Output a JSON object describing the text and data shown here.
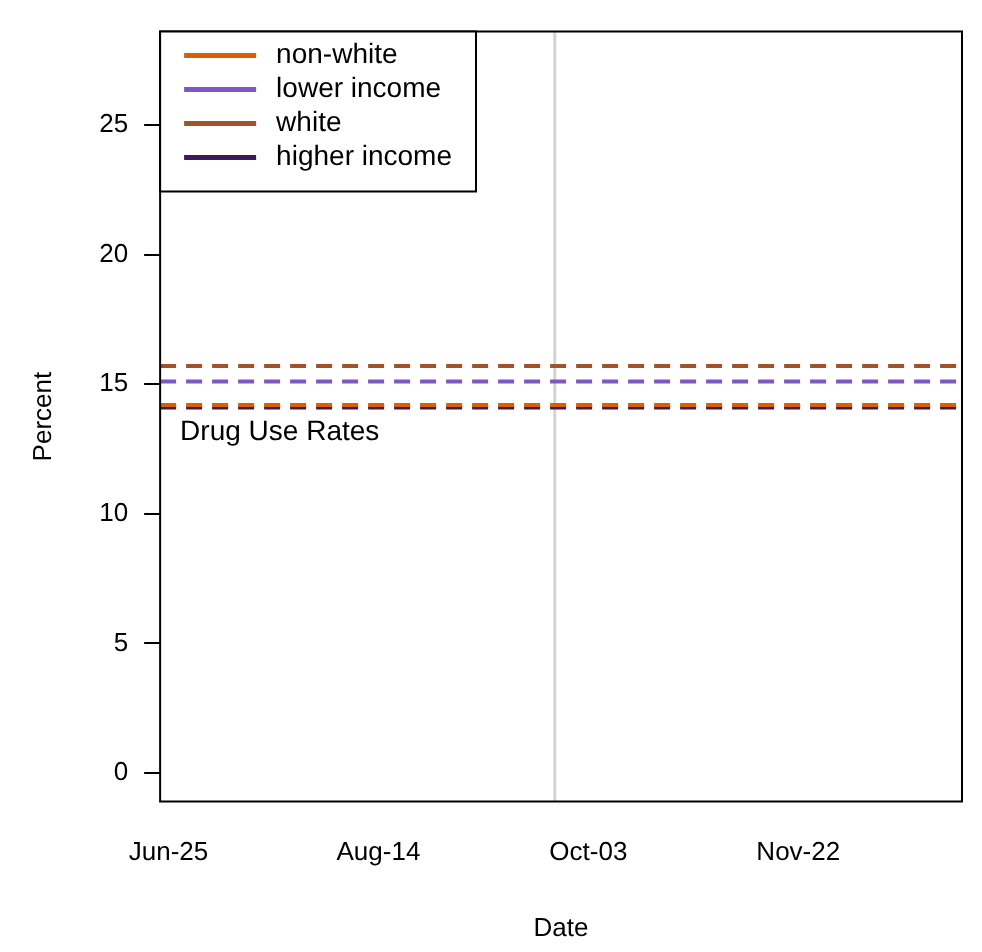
{
  "chart_data": {
    "type": "line",
    "xlabel": "Date",
    "ylabel": "Percent",
    "xlim": [
      "--06-23",
      "--12-31"
    ],
    "xticks": [
      {
        "value": "--06-25",
        "label": "Jun-25"
      },
      {
        "value": "--08-14",
        "label": "Aug-14"
      },
      {
        "value": "--10-03",
        "label": "Oct-03"
      },
      {
        "value": "--11-22",
        "label": "Nov-22"
      }
    ],
    "ylim": [
      -1.1,
      28.6
    ],
    "yticks": [
      0,
      5,
      10,
      15,
      20,
      25
    ],
    "series": [
      {
        "name": "non-white",
        "color": "#d95f02",
        "x": [
          "--06-23",
          "--12-31"
        ],
        "values": [
          14.2,
          14.2
        ]
      },
      {
        "name": "lower income",
        "color": "#7e57c2",
        "x": [
          "--06-23",
          "--12-31"
        ],
        "values": [
          15.1,
          15.1
        ]
      },
      {
        "name": "white",
        "color": "#a0522d",
        "x": [
          "--06-23",
          "--12-31"
        ],
        "values": [
          15.7,
          15.7
        ]
      },
      {
        "name": "higher income",
        "color": "#3b1a5e",
        "x": [
          "--06-23",
          "--12-31"
        ],
        "values": [
          14.1,
          14.1
        ]
      }
    ],
    "line_style": "dashed",
    "marker": "none",
    "legend": "top left",
    "grid": false,
    "ref_lines": [
      {
        "axis": "x",
        "value": "--09-25",
        "color": "#d3d3d3",
        "line_style": "solid"
      }
    ],
    "annotations": [
      "Drug Use Rates"
    ]
  }
}
